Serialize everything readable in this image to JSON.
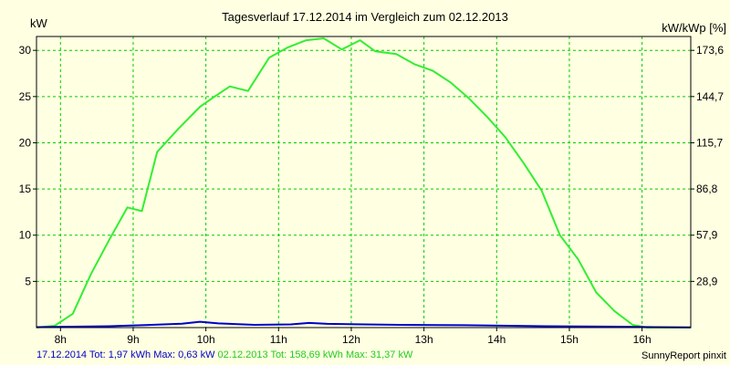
{
  "chart_data": {
    "type": "line",
    "title": "Tagesverlauf 17.12.2014 im Vergleich zum 02.12.2013",
    "ylabel_left": "kW",
    "ylabel_right": "kW/kWp [%]",
    "x_ticks": [
      "8h",
      "9h",
      "10h",
      "11h",
      "12h",
      "13h",
      "14h",
      "15h",
      "16h"
    ],
    "y_ticks_left": [
      "5",
      "10",
      "15",
      "20",
      "25",
      "30"
    ],
    "y_ticks_right": [
      "28,9",
      "57,9",
      "86,8",
      "115,7",
      "144,7",
      "173,6"
    ],
    "xlim": [
      7.67,
      16.67
    ],
    "ylim": [
      0,
      31.5
    ],
    "grid": true,
    "colors": {
      "background": "#ffffe1",
      "plot_bg": "#ffffe1",
      "grid": "#00cc00",
      "axis": "#000000"
    },
    "series": [
      {
        "name": "02.12.2013",
        "color": "#33ee33",
        "x": [
          7.67,
          7.92,
          8.17,
          8.42,
          8.67,
          8.92,
          9.12,
          9.33,
          9.62,
          9.92,
          10.12,
          10.33,
          10.58,
          10.87,
          11.12,
          11.38,
          11.62,
          11.87,
          12.12,
          12.33,
          12.62,
          12.87,
          13.12,
          13.37,
          13.62,
          13.87,
          14.12,
          14.37,
          14.62,
          14.87,
          15.12,
          15.37,
          15.62,
          15.87,
          16.07,
          16.33,
          16.67
        ],
        "y": [
          0.0,
          0.2,
          1.5,
          5.8,
          9.5,
          13.0,
          12.6,
          19.0,
          21.5,
          23.9,
          25.0,
          26.1,
          25.6,
          29.2,
          30.3,
          31.1,
          31.3,
          30.1,
          31.1,
          29.9,
          29.6,
          28.5,
          27.8,
          26.5,
          24.8,
          22.8,
          20.6,
          17.8,
          14.8,
          10.0,
          7.4,
          3.8,
          1.8,
          0.3,
          0.0,
          0.0,
          0.0
        ]
      },
      {
        "name": "17.12.2014",
        "color": "#0000cc",
        "x": [
          7.67,
          8.17,
          8.67,
          9.17,
          9.67,
          9.92,
          10.17,
          10.67,
          11.17,
          11.42,
          11.67,
          12.17,
          12.67,
          13.17,
          13.67,
          14.17,
          14.67,
          15.17,
          15.67,
          16.17,
          16.67
        ],
        "y": [
          0.05,
          0.1,
          0.15,
          0.28,
          0.42,
          0.63,
          0.45,
          0.3,
          0.35,
          0.5,
          0.4,
          0.35,
          0.3,
          0.28,
          0.25,
          0.2,
          0.15,
          0.12,
          0.1,
          0.05,
          0.02
        ]
      }
    ]
  },
  "footer": {
    "series1_text": "17.12.2014 Tot: 1,97 kWh Max: 0,63 kW",
    "series2_text": "02.12.2013 Tot: 158,69 kWh Max: 31,37 kW",
    "brand": "SunnyReport pinxit",
    "series1_color": "#0000cc",
    "series2_color": "#22cc22"
  }
}
